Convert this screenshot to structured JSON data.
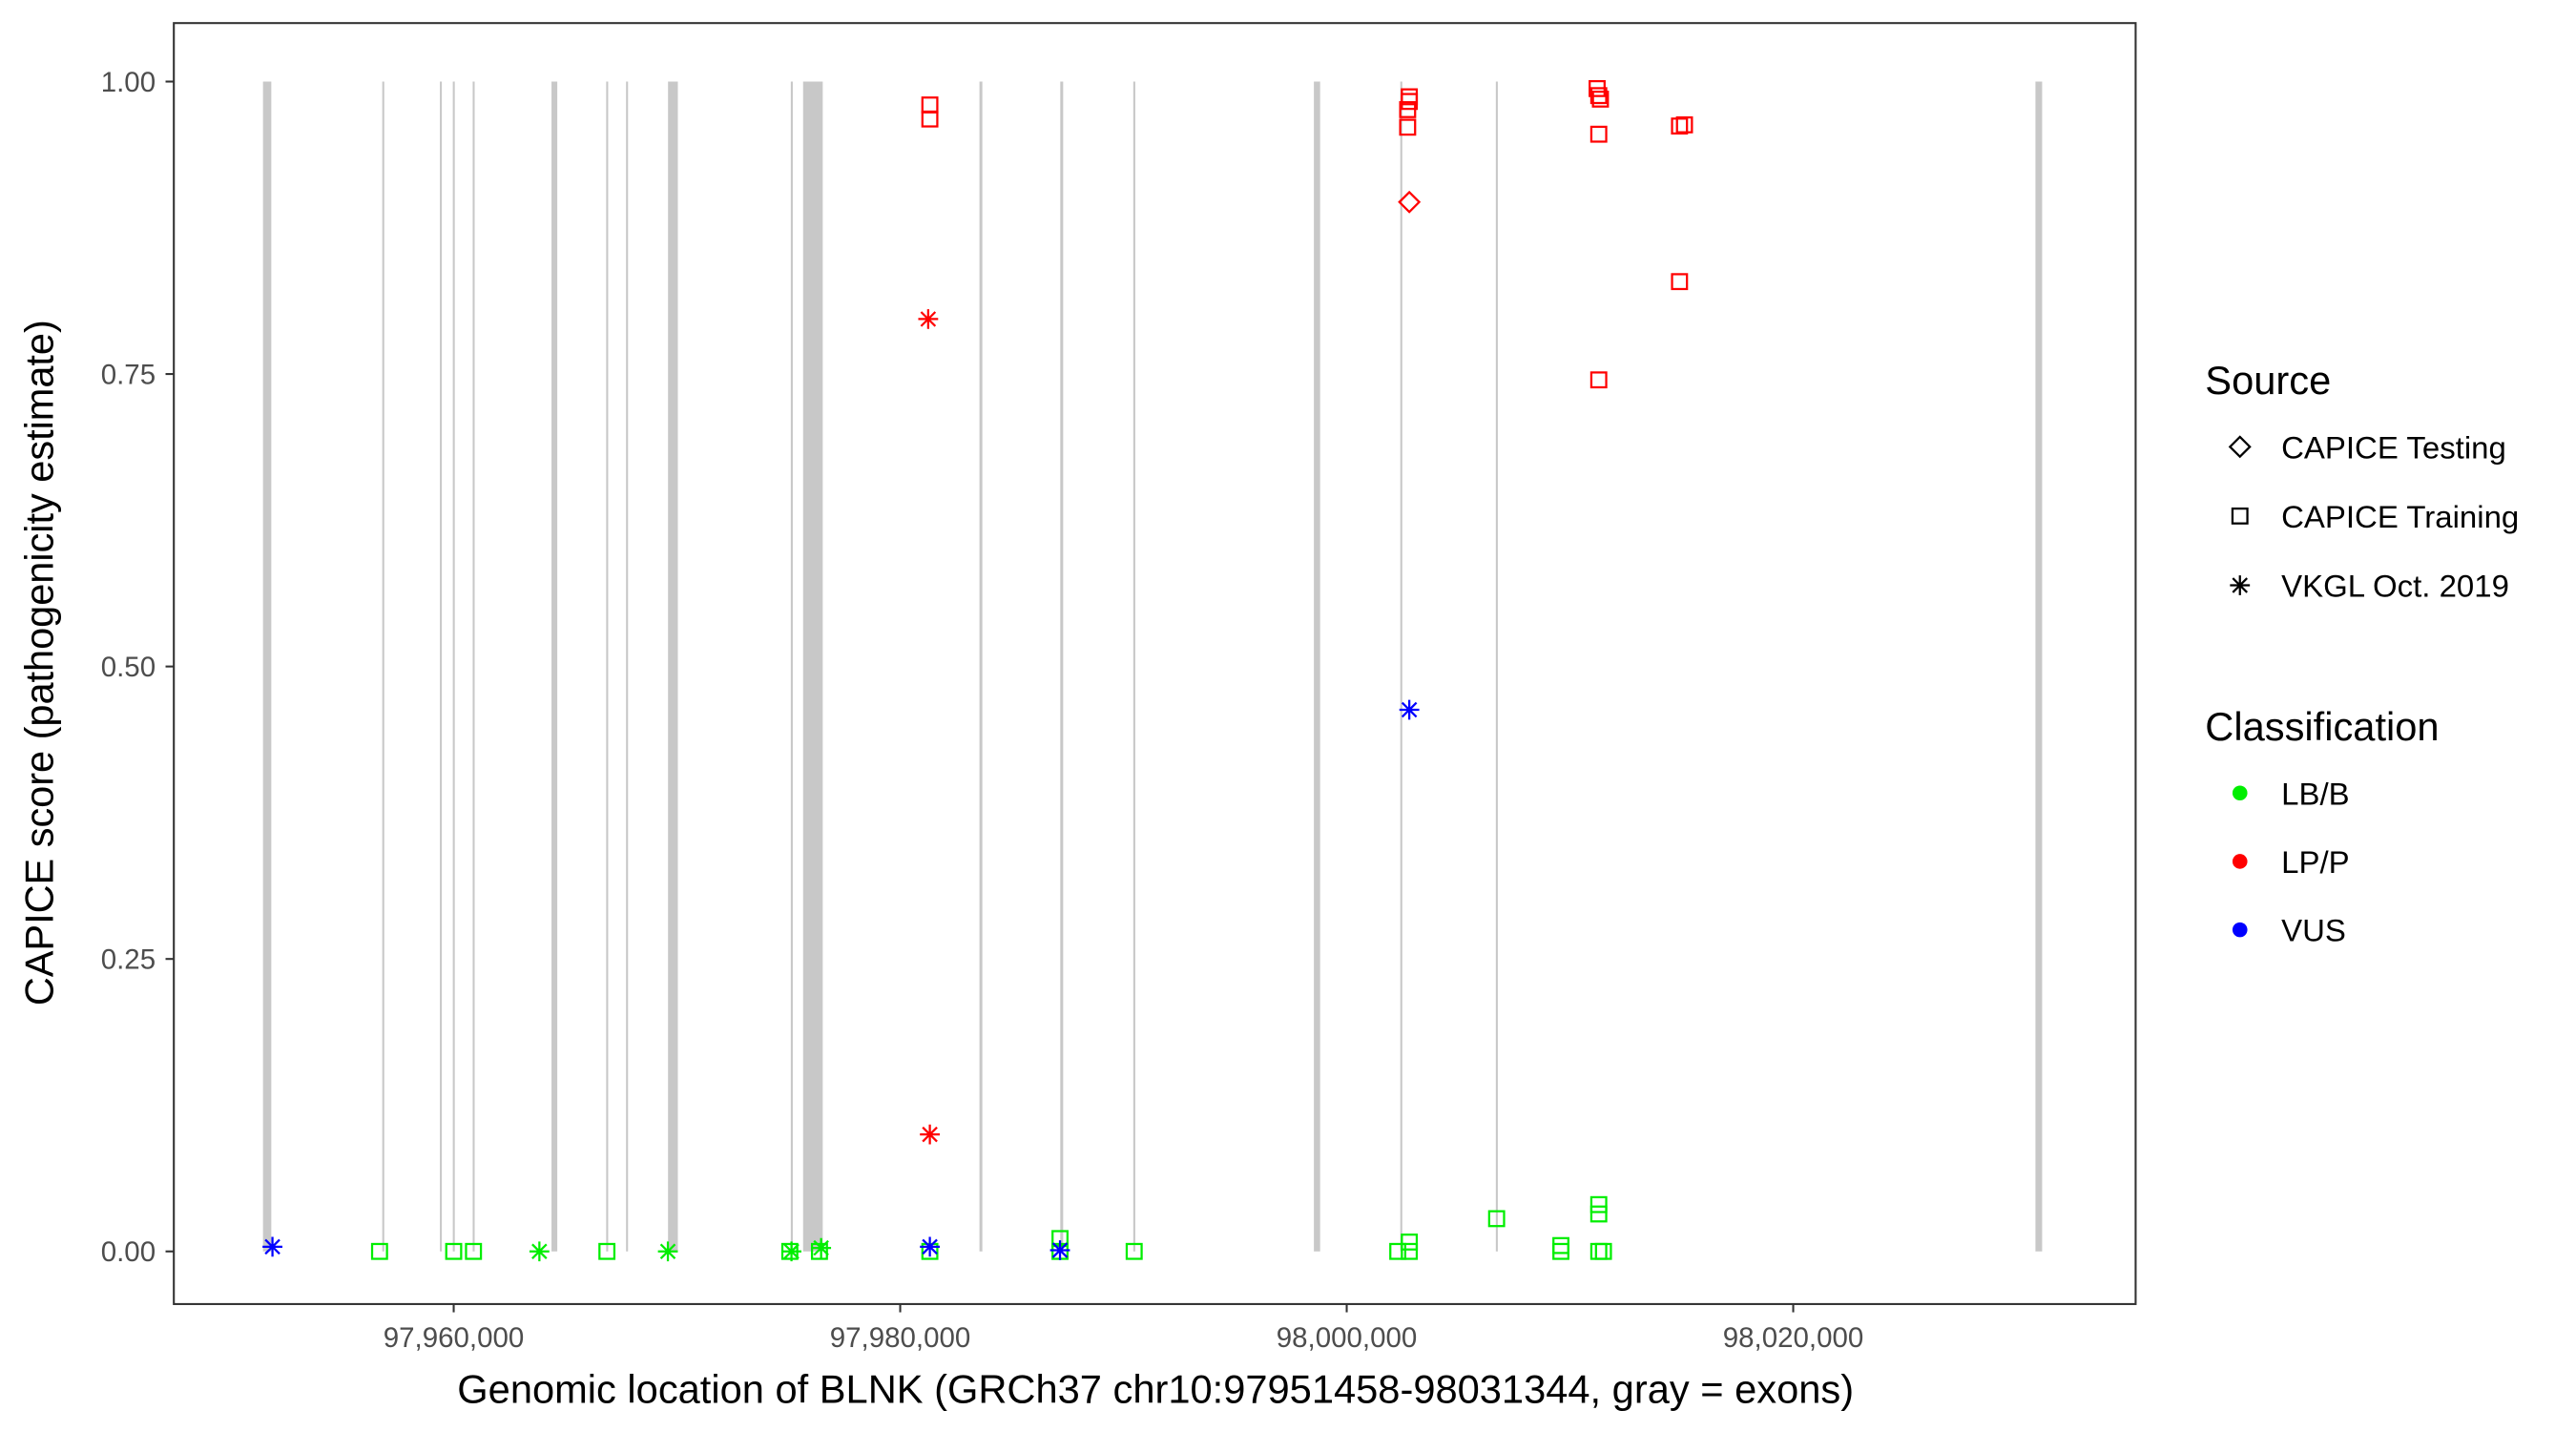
{
  "chart_data": {
    "type": "scatter",
    "xlabel": "Genomic location of BLNK (GRCh37 chr10:97951458-98031344, gray = exons)",
    "ylabel": "CAPICE score (pathogenicity estimate)",
    "xlim": [
      97947464,
      98035338
    ],
    "ylim": [
      -0.045,
      1.05
    ],
    "x_ticks": [
      97960000,
      97980000,
      98000000,
      98020000
    ],
    "x_tick_labels": [
      "97,960,000",
      "97,980,000",
      "98,000,000",
      "98,020,000"
    ],
    "y_ticks": [
      0,
      0.25,
      0.5,
      0.75,
      1.0
    ],
    "y_tick_labels": [
      "0.00",
      "0.25",
      "0.50",
      "0.75",
      "1.00"
    ],
    "grid": false,
    "exon_color": "#c8c8c8",
    "exons": [
      [
        97951458,
        97951830
      ],
      [
        97956800,
        97956880
      ],
      [
        97959380,
        97959460
      ],
      [
        97959960,
        97960040
      ],
      [
        97960850,
        97960930
      ],
      [
        97964380,
        97964640
      ],
      [
        97966830,
        97966900
      ],
      [
        97967720,
        97967790
      ],
      [
        97969600,
        97970040
      ],
      [
        97975100,
        97975170
      ],
      [
        97975650,
        97976530
      ],
      [
        97983550,
        97983680
      ],
      [
        97987170,
        97987300
      ],
      [
        97990440,
        97990520
      ],
      [
        97998530,
        97998810
      ],
      [
        98002400,
        98002470
      ],
      [
        98006680,
        98006750
      ],
      [
        98030850,
        98031150
      ]
    ],
    "legend": {
      "placement": "right",
      "source": {
        "title": "Source",
        "items": [
          {
            "label": "CAPICE Testing",
            "shape": "diamond"
          },
          {
            "label": "CAPICE Training",
            "shape": "square"
          },
          {
            "label": "VKGL Oct. 2019",
            "shape": "asterisk"
          }
        ]
      },
      "classification": {
        "title": "Classification",
        "items": [
          {
            "label": "LB/B",
            "color": "#00ee00"
          },
          {
            "label": "LP/P",
            "color": "#ff0000"
          },
          {
            "label": "VUS",
            "color": "#0000ff"
          }
        ]
      }
    },
    "points": [
      {
        "x": 97956679,
        "y": 0.0,
        "source": "CAPICE Training",
        "class": "LB/B"
      },
      {
        "x": 97960000,
        "y": 0.0,
        "source": "CAPICE Training",
        "class": "LB/B"
      },
      {
        "x": 97960886,
        "y": 0.0,
        "source": "CAPICE Training",
        "class": "LB/B"
      },
      {
        "x": 97963838,
        "y": 0.0,
        "source": "VKGL Oct. 2019",
        "class": "LB/B"
      },
      {
        "x": 97966863,
        "y": 0.0,
        "source": "CAPICE Training",
        "class": "LB/B"
      },
      {
        "x": 97969594,
        "y": 0.0,
        "source": "VKGL Oct. 2019",
        "class": "LB/B"
      },
      {
        "x": 97975055,
        "y": 0.0,
        "source": "CAPICE Training",
        "class": "LB/B"
      },
      {
        "x": 97975130,
        "y": 0.0,
        "source": "VKGL Oct. 2019",
        "class": "LB/B"
      },
      {
        "x": 97976384,
        "y": 0.0,
        "source": "CAPICE Training",
        "class": "LB/B"
      },
      {
        "x": 97976458,
        "y": 0.003,
        "source": "VKGL Oct. 2019",
        "class": "LB/B"
      },
      {
        "x": 97981328,
        "y": 0.0,
        "source": "CAPICE Training",
        "class": "LB/B"
      },
      {
        "x": 97987158,
        "y": 0.011,
        "source": "CAPICE Training",
        "class": "LB/B"
      },
      {
        "x": 97987158,
        "y": 0.0,
        "source": "CAPICE Training",
        "class": "LB/B"
      },
      {
        "x": 97990480,
        "y": 0.0,
        "source": "CAPICE Training",
        "class": "LB/B"
      },
      {
        "x": 98002287,
        "y": 0.0,
        "source": "CAPICE Training",
        "class": "LB/B"
      },
      {
        "x": 98002804,
        "y": 0.008,
        "source": "CAPICE Training",
        "class": "LB/B"
      },
      {
        "x": 98002804,
        "y": 0.0,
        "source": "CAPICE Training",
        "class": "LB/B"
      },
      {
        "x": 98006715,
        "y": 0.028,
        "source": "CAPICE Training",
        "class": "LB/B"
      },
      {
        "x": 98009594,
        "y": 0.005,
        "source": "CAPICE Training",
        "class": "LB/B"
      },
      {
        "x": 98009594,
        "y": 0.0,
        "source": "CAPICE Training",
        "class": "LB/B"
      },
      {
        "x": 98011291,
        "y": 0.04,
        "source": "CAPICE Training",
        "class": "LB/B"
      },
      {
        "x": 98011291,
        "y": 0.032,
        "source": "CAPICE Training",
        "class": "LB/B"
      },
      {
        "x": 98011291,
        "y": 0.0,
        "source": "CAPICE Training",
        "class": "LB/B"
      },
      {
        "x": 98011500,
        "y": 0.0,
        "source": "CAPICE Training",
        "class": "LB/B"
      },
      {
        "x": 97981328,
        "y": 0.98,
        "source": "CAPICE Training",
        "class": "LP/P"
      },
      {
        "x": 97981328,
        "y": 0.968,
        "source": "CAPICE Training",
        "class": "LP/P"
      },
      {
        "x": 97981254,
        "y": 0.797,
        "source": "VKGL Oct. 2019",
        "class": "LP/P"
      },
      {
        "x": 97981328,
        "y": 0.1,
        "source": "VKGL Oct. 2019",
        "class": "LP/P"
      },
      {
        "x": 98002804,
        "y": 0.987,
        "source": "CAPICE Training",
        "class": "LP/P"
      },
      {
        "x": 98002804,
        "y": 0.983,
        "source": "CAPICE Training",
        "class": "LP/P"
      },
      {
        "x": 98002730,
        "y": 0.976,
        "source": "CAPICE Training",
        "class": "LP/P"
      },
      {
        "x": 98002730,
        "y": 0.961,
        "source": "CAPICE Training",
        "class": "LP/P"
      },
      {
        "x": 98002804,
        "y": 0.897,
        "source": "CAPICE Testing",
        "class": "LP/P"
      },
      {
        "x": 98011217,
        "y": 0.994,
        "source": "CAPICE Training",
        "class": "LP/P"
      },
      {
        "x": 98011291,
        "y": 0.988,
        "source": "CAPICE Training",
        "class": "LP/P"
      },
      {
        "x": 98011365,
        "y": 0.985,
        "source": "CAPICE Training",
        "class": "LP/P"
      },
      {
        "x": 98011291,
        "y": 0.955,
        "source": "CAPICE Training",
        "class": "LP/P"
      },
      {
        "x": 98011291,
        "y": 0.745,
        "source": "CAPICE Training",
        "class": "LP/P"
      },
      {
        "x": 98014907,
        "y": 0.962,
        "source": "CAPICE Training",
        "class": "LP/P"
      },
      {
        "x": 98015129,
        "y": 0.963,
        "source": "CAPICE Training",
        "class": "LP/P"
      },
      {
        "x": 98014907,
        "y": 0.829,
        "source": "CAPICE Training",
        "class": "LP/P"
      },
      {
        "x": 97951882,
        "y": 0.004,
        "source": "VKGL Oct. 2019",
        "class": "VUS"
      },
      {
        "x": 97981328,
        "y": 0.004,
        "source": "VKGL Oct. 2019",
        "class": "VUS"
      },
      {
        "x": 97987158,
        "y": 0.001,
        "source": "VKGL Oct. 2019",
        "class": "VUS"
      },
      {
        "x": 98002804,
        "y": 0.463,
        "source": "VKGL Oct. 2019",
        "class": "VUS"
      }
    ]
  }
}
